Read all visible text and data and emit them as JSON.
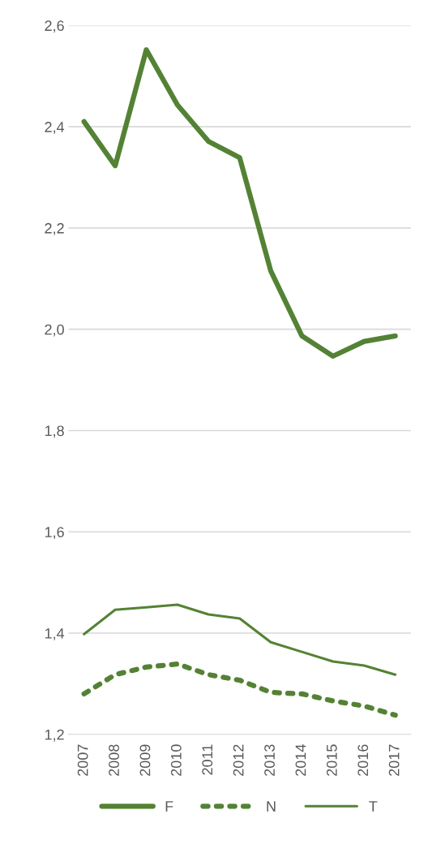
{
  "chart_data": {
    "type": "line",
    "categories": [
      "2007",
      "2008",
      "2009",
      "2010",
      "2011",
      "2012",
      "2013",
      "2014",
      "2015",
      "2016",
      "2017"
    ],
    "series": [
      {
        "name": "F",
        "color": "#548235",
        "line_style": "solid",
        "values": [
          2.41,
          2.323,
          2.552,
          2.443,
          2.371,
          2.339,
          2.115,
          1.987,
          1.947,
          1.976,
          1.987
        ]
      },
      {
        "name": "N",
        "color": "#548235",
        "line_style": "dotted",
        "values": [
          1.28,
          1.318,
          1.333,
          1.339,
          1.318,
          1.307,
          1.283,
          1.28,
          1.266,
          1.256,
          1.238
        ]
      },
      {
        "name": "T",
        "color": "#548235",
        "line_style": "solid",
        "values": [
          1.398,
          1.446,
          1.451,
          1.456,
          1.437,
          1.429,
          1.382,
          1.363,
          1.344,
          1.336,
          1.318
        ]
      }
    ],
    "ylim": [
      1.2,
      2.6
    ],
    "yticks": [
      {
        "value": 1.2,
        "label": "1,2"
      },
      {
        "value": 1.4,
        "label": "1,4"
      },
      {
        "value": 1.6,
        "label": "1,6"
      },
      {
        "value": 1.8,
        "label": "1,8"
      },
      {
        "value": 2.0,
        "label": "2,0"
      },
      {
        "value": 2.2,
        "label": "2,2"
      },
      {
        "value": 2.4,
        "label": "2,4"
      },
      {
        "value": 2.6,
        "label": "2,6"
      }
    ],
    "grid": "y",
    "legend": "bottom",
    "marker": "none"
  }
}
